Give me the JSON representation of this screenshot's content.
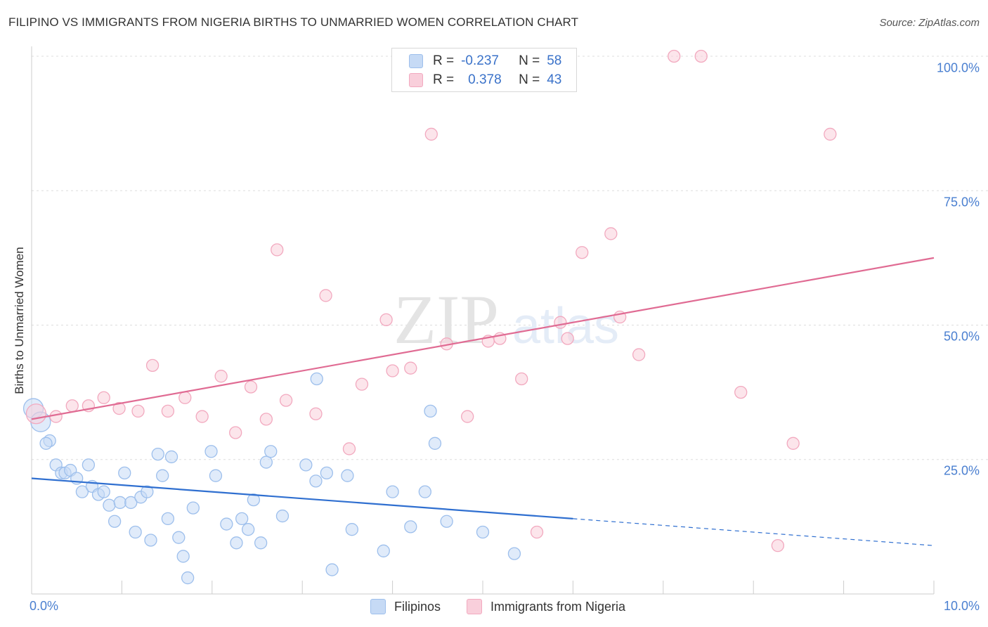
{
  "title": "FILIPINO VS IMMIGRANTS FROM NIGERIA BIRTHS TO UNMARRIED WOMEN CORRELATION CHART",
  "source": "Source: ZipAtlas.com",
  "watermark": {
    "zip": "ZIP",
    "atlas": "atlas"
  },
  "legend": {
    "r_label": "R =",
    "n_label": "N =",
    "series": [
      {
        "name": "Filipinos",
        "r": "-0.237",
        "n": "58",
        "color": "#9dbfec",
        "fill": "#c6daf5",
        "line": "#2f6fd0"
      },
      {
        "name": "Immigrants from Nigeria",
        "r": "0.378",
        "n": "43",
        "color": "#f2a9bf",
        "fill": "#f9cfdb",
        "line": "#e06b93"
      }
    ]
  },
  "chart_data": {
    "type": "scatter",
    "title": "FILIPINO VS IMMIGRANTS FROM NIGERIA BIRTHS TO UNMARRIED WOMEN CORRELATION CHART",
    "xlabel": "",
    "ylabel": "Births to Unmarried Women",
    "xlim": [
      0,
      10
    ],
    "ylim": [
      0,
      100
    ],
    "x_ticks": [
      "0.0%",
      "10.0%"
    ],
    "y_ticks": [
      "100.0%",
      "75.0%",
      "50.0%",
      "25.0%"
    ],
    "y_tick_values": [
      100,
      75,
      50,
      25
    ],
    "x_minor_ticks": [
      0,
      1,
      2,
      3,
      4,
      5,
      6,
      7,
      8,
      9,
      10
    ],
    "grid": true,
    "legend_position": "top-center",
    "series": [
      {
        "name": "Filipinos",
        "trend": {
          "x_start": 0,
          "y_start": 21.5,
          "x_solid_end": 6.0,
          "y_solid_end": 14.0,
          "x_end": 10,
          "y_end": 9.0
        },
        "points": [
          {
            "x": 0.02,
            "y": 34.5,
            "big": true
          },
          {
            "x": 0.1,
            "y": 32.0,
            "big": true
          },
          {
            "x": 0.2,
            "y": 28.5
          },
          {
            "x": 0.16,
            "y": 28.0
          },
          {
            "x": 0.27,
            "y": 24.0
          },
          {
            "x": 0.33,
            "y": 22.5
          },
          {
            "x": 0.37,
            "y": 22.5
          },
          {
            "x": 0.43,
            "y": 23.0
          },
          {
            "x": 0.5,
            "y": 21.5
          },
          {
            "x": 0.63,
            "y": 24.0
          },
          {
            "x": 0.56,
            "y": 19.0
          },
          {
            "x": 0.67,
            "y": 20.0
          },
          {
            "x": 0.74,
            "y": 18.5
          },
          {
            "x": 0.8,
            "y": 19.0
          },
          {
            "x": 0.86,
            "y": 16.5
          },
          {
            "x": 0.92,
            "y": 13.5
          },
          {
            "x": 0.98,
            "y": 17.0
          },
          {
            "x": 1.03,
            "y": 22.5
          },
          {
            "x": 1.1,
            "y": 17.0
          },
          {
            "x": 1.15,
            "y": 11.5
          },
          {
            "x": 1.21,
            "y": 18.0
          },
          {
            "x": 1.28,
            "y": 19.0
          },
          {
            "x": 1.32,
            "y": 10.0
          },
          {
            "x": 1.4,
            "y": 26.0
          },
          {
            "x": 1.45,
            "y": 22.0
          },
          {
            "x": 1.51,
            "y": 14.0
          },
          {
            "x": 1.55,
            "y": 25.5
          },
          {
            "x": 1.63,
            "y": 10.5
          },
          {
            "x": 1.68,
            "y": 7.0
          },
          {
            "x": 1.73,
            "y": 3.0
          },
          {
            "x": 1.79,
            "y": 16.0
          },
          {
            "x": 1.99,
            "y": 26.5
          },
          {
            "x": 2.04,
            "y": 22.0
          },
          {
            "x": 2.16,
            "y": 13.0
          },
          {
            "x": 2.27,
            "y": 9.5
          },
          {
            "x": 2.33,
            "y": 14.0
          },
          {
            "x": 2.4,
            "y": 12.0
          },
          {
            "x": 2.46,
            "y": 17.5
          },
          {
            "x": 2.54,
            "y": 9.5
          },
          {
            "x": 2.6,
            "y": 24.5
          },
          {
            "x": 2.65,
            "y": 26.5
          },
          {
            "x": 2.78,
            "y": 14.5
          },
          {
            "x": 3.04,
            "y": 24.0
          },
          {
            "x": 3.15,
            "y": 21.0
          },
          {
            "x": 3.16,
            "y": 40.0
          },
          {
            "x": 3.27,
            "y": 22.5
          },
          {
            "x": 3.33,
            "y": 4.5
          },
          {
            "x": 3.5,
            "y": 22.0
          },
          {
            "x": 3.55,
            "y": 12.0
          },
          {
            "x": 3.9,
            "y": 8.0
          },
          {
            "x": 4.0,
            "y": 19.0
          },
          {
            "x": 4.2,
            "y": 12.5
          },
          {
            "x": 4.36,
            "y": 19.0
          },
          {
            "x": 4.42,
            "y": 34.0
          },
          {
            "x": 4.47,
            "y": 28.0
          },
          {
            "x": 4.6,
            "y": 13.5
          },
          {
            "x": 5.0,
            "y": 11.5
          },
          {
            "x": 5.35,
            "y": 7.5
          }
        ]
      },
      {
        "name": "Immigrants from Nigeria",
        "trend": {
          "x_start": 0,
          "y_start": 32.5,
          "x_end": 10,
          "y_end": 62.5
        },
        "points": [
          {
            "x": 0.05,
            "y": 33.5,
            "big": true
          },
          {
            "x": 0.27,
            "y": 33.0
          },
          {
            "x": 0.45,
            "y": 35.0
          },
          {
            "x": 0.63,
            "y": 35.0
          },
          {
            "x": 0.8,
            "y": 36.5
          },
          {
            "x": 0.97,
            "y": 34.5
          },
          {
            "x": 1.18,
            "y": 34.0
          },
          {
            "x": 1.34,
            "y": 42.5
          },
          {
            "x": 1.51,
            "y": 34.0
          },
          {
            "x": 1.7,
            "y": 36.5
          },
          {
            "x": 1.89,
            "y": 33.0
          },
          {
            "x": 2.1,
            "y": 40.5
          },
          {
            "x": 2.26,
            "y": 30.0
          },
          {
            "x": 2.43,
            "y": 38.5
          },
          {
            "x": 2.6,
            "y": 32.5
          },
          {
            "x": 2.72,
            "y": 64.0
          },
          {
            "x": 2.82,
            "y": 36.0
          },
          {
            "x": 3.15,
            "y": 33.5
          },
          {
            "x": 3.26,
            "y": 55.5
          },
          {
            "x": 3.52,
            "y": 27.0
          },
          {
            "x": 3.66,
            "y": 39.0
          },
          {
            "x": 3.93,
            "y": 51.0
          },
          {
            "x": 4.0,
            "y": 41.5
          },
          {
            "x": 4.2,
            "y": 42.0
          },
          {
            "x": 4.43,
            "y": 85.5
          },
          {
            "x": 4.6,
            "y": 46.5
          },
          {
            "x": 4.83,
            "y": 33.0
          },
          {
            "x": 5.06,
            "y": 47.0
          },
          {
            "x": 5.19,
            "y": 47.5
          },
          {
            "x": 5.43,
            "y": 40.0
          },
          {
            "x": 5.6,
            "y": 11.5
          },
          {
            "x": 5.86,
            "y": 50.5
          },
          {
            "x": 5.94,
            "y": 47.5
          },
          {
            "x": 6.1,
            "y": 63.5
          },
          {
            "x": 6.42,
            "y": 67.0
          },
          {
            "x": 6.52,
            "y": 51.5
          },
          {
            "x": 6.73,
            "y": 44.5
          },
          {
            "x": 7.12,
            "y": 100.0
          },
          {
            "x": 7.42,
            "y": 100.0
          },
          {
            "x": 7.86,
            "y": 37.5
          },
          {
            "x": 8.27,
            "y": 9.0
          },
          {
            "x": 8.44,
            "y": 28.0
          },
          {
            "x": 8.85,
            "y": 85.5
          }
        ]
      }
    ]
  }
}
